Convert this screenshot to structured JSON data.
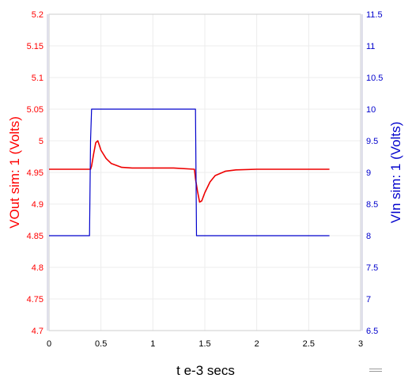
{
  "chart_data": {
    "type": "line",
    "xlabel": "t e-3 secs",
    "ylabel_left": "VOut sim:  1 (Volts)",
    "ylabel_right": "VIn sim:  1 (Volts)",
    "xlim": [
      0,
      3
    ],
    "ylim_left": [
      4.7,
      5.2
    ],
    "ylim_right": [
      6.5,
      11.5
    ],
    "x_ticks": [
      "0",
      "0.5",
      "1",
      "1.5",
      "2",
      "2.5",
      "3"
    ],
    "y_left_ticks": [
      "4.7",
      "4.75",
      "4.8",
      "4.85",
      "4.9",
      "4.95",
      "5",
      "5.05",
      "5.1",
      "5.15",
      "5.2"
    ],
    "y_right_ticks": [
      "6.5",
      "7",
      "7.5",
      "8",
      "8.5",
      "9",
      "9.5",
      "10",
      "10.5",
      "11",
      "11.5"
    ],
    "grid": true,
    "series": [
      {
        "name": "VOut sim:  1 (Volts)",
        "axis": "left",
        "color": "#ee0000",
        "x": [
          0,
          0.4,
          0.41,
          0.43,
          0.45,
          0.47,
          0.5,
          0.55,
          0.6,
          0.7,
          0.8,
          1.0,
          1.2,
          1.4,
          1.41,
          1.43,
          1.45,
          1.47,
          1.5,
          1.55,
          1.6,
          1.7,
          1.8,
          2.0,
          2.3,
          2.7
        ],
        "y": [
          4.955,
          4.955,
          4.96,
          4.98,
          4.997,
          5.0,
          4.985,
          4.972,
          4.964,
          4.958,
          4.957,
          4.957,
          4.957,
          4.955,
          4.94,
          4.92,
          4.903,
          4.905,
          4.918,
          4.935,
          4.945,
          4.952,
          4.954,
          4.955,
          4.955,
          4.955
        ]
      },
      {
        "name": "VIn sim:  1 (Volts)",
        "axis": "right",
        "color": "#0000cc",
        "x": [
          0,
          0.39,
          0.4,
          0.41,
          1.4,
          1.41,
          1.42,
          2.7
        ],
        "y": [
          8,
          8,
          9.5,
          10,
          10,
          10,
          8,
          8
        ]
      }
    ]
  },
  "menu": {
    "icon": "hamburger-icon"
  }
}
